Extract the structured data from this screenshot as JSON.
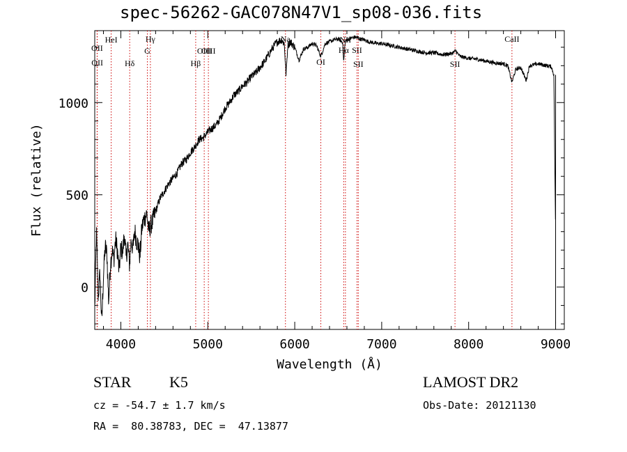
{
  "chart_data": {
    "type": "line",
    "title": "spec-56262-GAC078N47V1_sp08-036.fits",
    "xlabel": "Wavelength (Å)",
    "ylabel": "Flux (relative)",
    "xlim": [
      3700,
      9100
    ],
    "ylim": [
      -230,
      1390
    ],
    "xticks": [
      4000,
      5000,
      6000,
      7000,
      8000,
      9000
    ],
    "yticks": [
      0,
      500,
      1000
    ],
    "grid": false,
    "series": [
      {
        "color": "#000000",
        "x": [
          3700,
          3720,
          3740,
          3760,
          3780,
          3800,
          3820,
          3840,
          3860,
          3880,
          3900,
          3920,
          3940,
          3960,
          3980,
          4000,
          4020,
          4040,
          4060,
          4080,
          4100,
          4120,
          4140,
          4160,
          4180,
          4200,
          4220,
          4240,
          4260,
          4280,
          4300,
          4320,
          4340,
          4360,
          4380,
          4400,
          4450,
          4500,
          4550,
          4600,
          4650,
          4700,
          4750,
          4800,
          4850,
          4900,
          4950,
          5000,
          5050,
          5100,
          5150,
          5200,
          5250,
          5300,
          5350,
          5400,
          5450,
          5500,
          5550,
          5600,
          5650,
          5700,
          5750,
          5800,
          5850,
          5880,
          5900,
          5920,
          5950,
          6000,
          6050,
          6100,
          6150,
          6200,
          6250,
          6300,
          6350,
          6400,
          6450,
          6500,
          6550,
          6563,
          6580,
          6600,
          6650,
          6700,
          6750,
          6800,
          6850,
          6900,
          6950,
          7000,
          7100,
          7200,
          7300,
          7400,
          7500,
          7600,
          7700,
          7800,
          7850,
          7900,
          8000,
          8100,
          8200,
          8300,
          8400,
          8450,
          8498,
          8542,
          8600,
          8662,
          8700,
          8750,
          8800,
          8850,
          8900,
          8950,
          8980,
          9000
        ],
        "y": [
          -120,
          300,
          -60,
          80,
          -200,
          60,
          220,
          180,
          -80,
          120,
          200,
          150,
          260,
          200,
          80,
          220,
          180,
          290,
          160,
          230,
          120,
          260,
          200,
          310,
          250,
          230,
          160,
          310,
          360,
          380,
          400,
          300,
          330,
          350,
          380,
          410,
          480,
          520,
          560,
          590,
          620,
          670,
          690,
          730,
          760,
          800,
          810,
          840,
          860,
          880,
          920,
          970,
          1000,
          1040,
          1060,
          1090,
          1110,
          1140,
          1160,
          1190,
          1220,
          1260,
          1300,
          1330,
          1340,
          1320,
          1150,
          1310,
          1330,
          1300,
          1230,
          1290,
          1300,
          1320,
          1310,
          1250,
          1320,
          1330,
          1340,
          1345,
          1330,
          1220,
          1330,
          1340,
          1350,
          1355,
          1345,
          1340,
          1330,
          1325,
          1320,
          1320,
          1310,
          1300,
          1290,
          1280,
          1270,
          1270,
          1260,
          1265,
          1280,
          1250,
          1240,
          1235,
          1225,
          1215,
          1210,
          1200,
          1110,
          1180,
          1190,
          1120,
          1200,
          1205,
          1210,
          1205,
          1200,
          1195,
          1150,
          270
        ]
      }
    ],
    "lines": [
      {
        "label": "OII",
        "x": 3727
      },
      {
        "label": "OII",
        "x": 3729
      },
      {
        "label": "HeI",
        "x": 3889
      },
      {
        "label": "Hδ",
        "x": 4102
      },
      {
        "label": "Hγ",
        "x": 4340
      },
      {
        "label": "G",
        "x": 4305
      },
      {
        "label": "Hβ",
        "x": 4861
      },
      {
        "label": "OIII",
        "x": 4959
      },
      {
        "label": "OIII",
        "x": 5007
      },
      {
        "label": "Na",
        "x": 5893
      },
      {
        "label": "OI",
        "x": 6300
      },
      {
        "label": "NII",
        "x": 6583
      },
      {
        "label": "Hα",
        "x": 6563
      },
      {
        "label": "SII",
        "x": 6716
      },
      {
        "label": "SII",
        "x": 6731
      },
      {
        "label": "SII",
        "x": 7843
      },
      {
        "label": "CaII",
        "x": 8498
      }
    ]
  },
  "info": {
    "class": "STAR",
    "subclass": "K5",
    "survey": "LAMOST DR2",
    "cz": "cz = -54.7 ± 1.7 km/s",
    "obs_date": "Obs-Date: 20121130",
    "radec": "RA =  80.38783, DEC =  47.13877"
  },
  "colors": {
    "line_marker": "#cc0000",
    "spectrum": "#000000"
  }
}
